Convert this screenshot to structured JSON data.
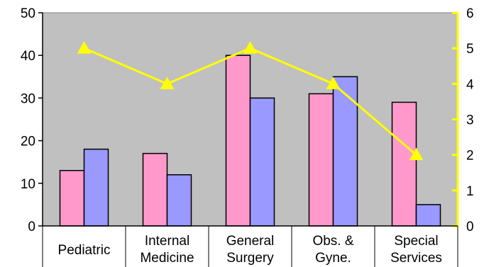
{
  "chart_data": {
    "type": "bar",
    "categories": [
      [
        "Pediatric"
      ],
      [
        "Internal",
        "Medicine"
      ],
      [
        "General",
        "Surgery"
      ],
      [
        "Obs. &",
        "Gyne."
      ],
      [
        "Special",
        "Services"
      ]
    ],
    "series": [
      {
        "values": [
          13,
          17,
          40,
          31,
          29
        ],
        "color": "#ff99cc",
        "axis": "left",
        "kind": "bar"
      },
      {
        "values": [
          18,
          12,
          30,
          35,
          5
        ],
        "color": "#9999ff",
        "axis": "left",
        "kind": "bar"
      },
      {
        "values": [
          5,
          4,
          5,
          4,
          2
        ],
        "color": "#ffff00",
        "axis": "right",
        "kind": "line",
        "marker": "triangle"
      }
    ],
    "y_left": {
      "min": 0,
      "max": 50,
      "ticks": [
        0,
        10,
        20,
        30,
        40,
        50
      ]
    },
    "y_right": {
      "min": 0,
      "max": 6,
      "ticks": [
        0,
        1,
        2,
        3,
        4,
        5,
        6
      ]
    },
    "plot_background": "#c0c0c0",
    "grid": false,
    "legend": "none"
  }
}
